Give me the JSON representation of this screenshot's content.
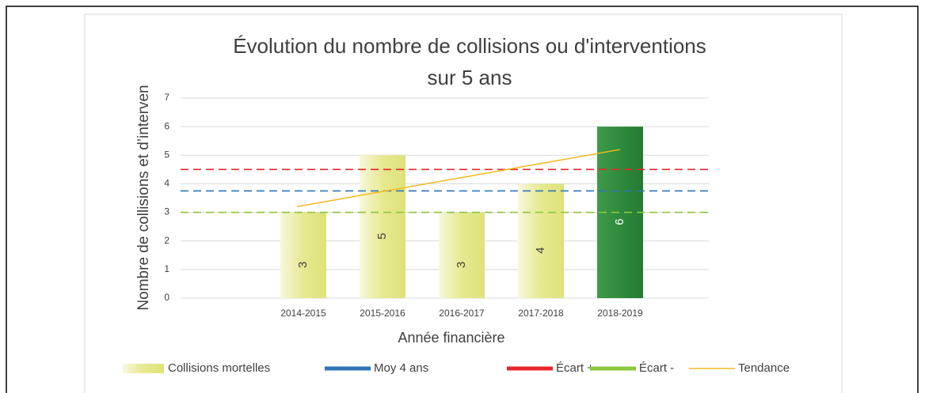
{
  "chart_data": {
    "type": "bar",
    "title": [
      "Évolution du nombre de collisions ou d'interventions",
      "sur 5 ans"
    ],
    "x_label": "Année financière",
    "y_label": "Nombre de collisions et d’interven",
    "categories": [
      "2014-2015",
      "2015-2016",
      "2016-2017",
      "2017-2018",
      "2018-2019"
    ],
    "ylim": [
      0,
      7
    ],
    "yticks": [
      0,
      1,
      2,
      3,
      4,
      5,
      6,
      7
    ],
    "grid": true,
    "legend": "bottom",
    "series": [
      {
        "name": "Collisions mortelles",
        "kind": "bar",
        "color": "#e2e68a",
        "colors": [
          "#e2e68a",
          "#e2e68a",
          "#e2e68a",
          "#e2e68a",
          "#2e8b3c"
        ],
        "values": [
          3,
          5,
          3,
          4,
          6
        ]
      },
      {
        "name": "Moy 4 ans",
        "kind": "hline",
        "color": "#2e75b6",
        "value": 3.75
      },
      {
        "name": "Écart +",
        "kind": "hline",
        "color": "#e8272a",
        "value": 4.5
      },
      {
        "name": "Écart -",
        "kind": "hline",
        "color": "#8dc63f",
        "value": 3
      },
      {
        "name": "Tendance",
        "kind": "line",
        "color": "#f5b820",
        "values": [
          3.2,
          3.7,
          4.2,
          4.7,
          5.2
        ]
      }
    ]
  }
}
